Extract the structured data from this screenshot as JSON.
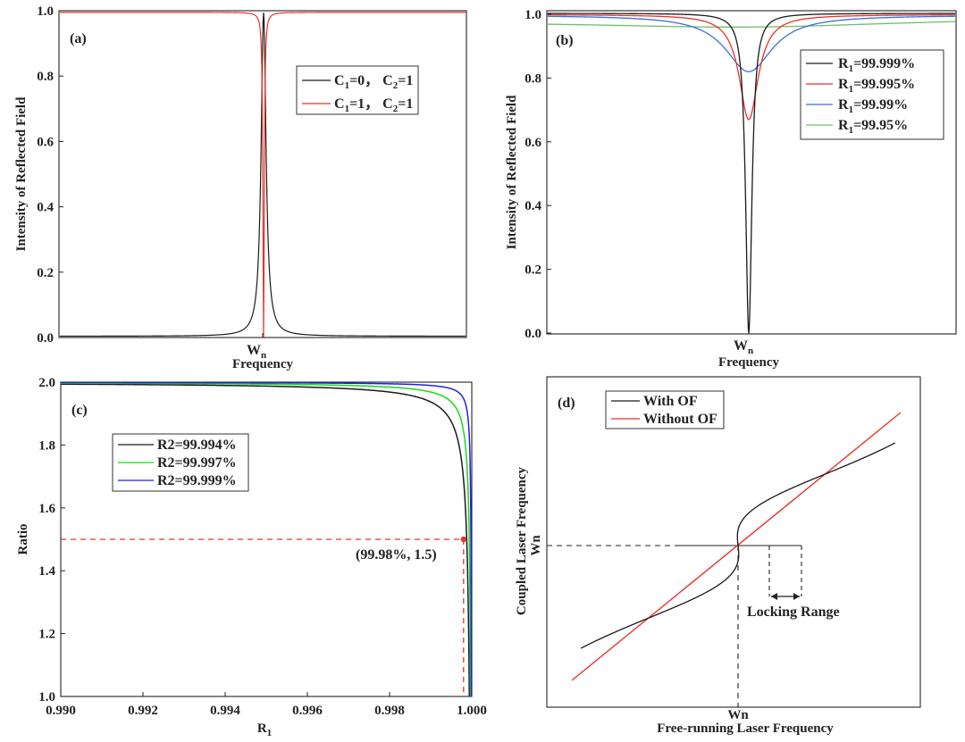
{
  "colors": {
    "black": "#1a1a1a",
    "red": "#e8322b",
    "blue": "#3b6fd9",
    "green": "#6fbf6a",
    "lime": "#19d919",
    "navy": "#2020e8",
    "dashRed": "#e8322b"
  },
  "panels": {
    "a": {
      "label": "(a)",
      "ylabel": "Intensity of Reflected Field",
      "xlabel": "Frequency",
      "x_center_label": "W",
      "x_center_sub": "n",
      "ylim": [
        0,
        1.0
      ],
      "yticks": [
        "0.0",
        "0.2",
        "0.4",
        "0.6",
        "0.8",
        "1.0"
      ],
      "legend": [
        {
          "text": "C",
          "sub1": "1",
          "mid": "=0， C",
          "sub2": "2",
          "end": "=1",
          "color": "#1a1a1a"
        },
        {
          "text": "C",
          "sub1": "1",
          "mid": "=1， C",
          "sub2": "2",
          "end": "=1",
          "color": "#e8322b"
        }
      ]
    },
    "b": {
      "label": "(b)",
      "ylabel": "Intensity of Reflected Field",
      "xlabel": "Frequency",
      "x_center_label": "W",
      "x_center_sub": "n",
      "ylim": [
        0,
        1.0
      ],
      "yticks": [
        "0.0",
        "0.2",
        "0.4",
        "0.6",
        "0.8",
        "1.0"
      ],
      "legend": [
        {
          "text": "R",
          "sub": "1",
          "rest": "=99.999%",
          "color": "#1a1a1a"
        },
        {
          "text": "R",
          "sub": "1",
          "rest": "=99.995%",
          "color": "#e8322b"
        },
        {
          "text": "R",
          "sub": "1",
          "rest": "=99.99%",
          "color": "#3b6fd9"
        },
        {
          "text": "R",
          "sub": "1",
          "rest": "=99.95%",
          "color": "#6fbf6a"
        }
      ]
    },
    "c": {
      "label": "(c)",
      "ylabel": "Ratio",
      "xlabel": "R",
      "xlabel_sub": "1",
      "xlim": [
        0.99,
        1.0
      ],
      "ylim": [
        1.0,
        2.0
      ],
      "xticks": [
        "0.990",
        "0.992",
        "0.994",
        "0.996",
        "0.998",
        "1.000"
      ],
      "yticks": [
        "1.0",
        "1.2",
        "1.4",
        "1.6",
        "1.8",
        "2.0"
      ],
      "legend": [
        {
          "text": "R2=99.994%",
          "color": "#1a1a1a"
        },
        {
          "text": "R2=99.997%",
          "color": "#19d919"
        },
        {
          "text": "R2=99.999%",
          "color": "#2020e8"
        }
      ],
      "marker": {
        "x": 0.9998,
        "y": 1.5,
        "label": "(99.98%, 1.5)"
      }
    },
    "d": {
      "label": "(d)",
      "ylabel": "Coupled Laser Frequency",
      "ylabel2": "Wn",
      "xlabel": "Free-running Laser Frequency",
      "xlabel2": "Wn",
      "legend": [
        {
          "text": "With OF",
          "color": "#1a1a1a"
        },
        {
          "text": "Without OF",
          "color": "#e8322b"
        }
      ],
      "annotation": "Locking Range"
    }
  },
  "chart_data": [
    {
      "panel": "a",
      "type": "line",
      "title": "",
      "xlabel": "Frequency",
      "ylabel": "Intensity of Reflected Field",
      "ylim": [
        0,
        1.0
      ],
      "x": "detuning (arb.) centered at Wn",
      "series": [
        {
          "name": "C1=0, C2=1",
          "shape": "Lorentzian peak",
          "baseline": 0.012,
          "peak": 1.0,
          "color": "#1a1a1a"
        },
        {
          "name": "C1=1, C2=1",
          "shape": "narrow Lorentzian dip",
          "baseline": 1.0,
          "minimum": 0.0,
          "color": "#e8322b"
        }
      ]
    },
    {
      "panel": "b",
      "type": "line",
      "title": "",
      "xlabel": "Frequency",
      "ylabel": "Intensity of Reflected Field",
      "ylim": [
        0,
        1.0
      ],
      "series": [
        {
          "name": "R1=99.999%",
          "minimum": 0.0,
          "baseline": 1.0,
          "color": "#1a1a1a"
        },
        {
          "name": "R1=99.995%",
          "minimum": 0.67,
          "baseline": 1.0,
          "color": "#e8322b"
        },
        {
          "name": "R1=99.99%",
          "minimum": 0.82,
          "baseline": 0.995,
          "color": "#3b6fd9"
        },
        {
          "name": "R1=99.95%",
          "minimum": 0.96,
          "baseline": 0.985,
          "color": "#6fbf6a"
        }
      ]
    },
    {
      "panel": "c",
      "type": "line",
      "title": "",
      "xlabel": "R1",
      "ylabel": "Ratio",
      "xlim": [
        0.99,
        1.0
      ],
      "ylim": [
        1.0,
        2.0
      ],
      "series": [
        {
          "name": "R2=99.994%",
          "x": [
            0.99,
            0.992,
            0.994,
            0.996,
            0.998,
            0.999,
            0.9995,
            0.9998,
            0.99994
          ],
          "y": [
            1.991,
            1.987,
            1.98,
            1.967,
            1.912,
            1.83,
            1.7,
            1.5,
            1.0
          ],
          "color": "#1a1a1a"
        },
        {
          "name": "R2=99.997%",
          "x": [
            0.99,
            0.992,
            0.994,
            0.996,
            0.998,
            0.999,
            0.9995,
            0.9998,
            0.99997
          ],
          "y": [
            1.996,
            1.994,
            1.99,
            1.983,
            1.957,
            1.91,
            1.83,
            1.67,
            1.0
          ],
          "color": "#19d919"
        },
        {
          "name": "R2=99.999%",
          "x": [
            0.99,
            0.992,
            0.994,
            0.996,
            0.998,
            0.999,
            0.9995,
            0.9998,
            0.99999
          ],
          "y": [
            1.999,
            1.998,
            1.997,
            1.995,
            1.99,
            1.98,
            1.96,
            1.9,
            1.0
          ],
          "color": "#2020e8"
        }
      ],
      "annotations": [
        {
          "x": 0.9998,
          "y": 1.5,
          "text": "(99.98%, 1.5)"
        }
      ]
    },
    {
      "panel": "d",
      "type": "line",
      "title": "",
      "xlabel": "Free-running Laser Frequency",
      "ylabel": "Coupled Laser Frequency",
      "series": [
        {
          "name": "With OF",
          "shape": "S-shaped (multivalued) curve through Wn",
          "color": "#1a1a1a"
        },
        {
          "name": "Without OF",
          "shape": "straight diagonal line through Wn",
          "color": "#e8322b"
        }
      ],
      "annotations": [
        {
          "text": "Locking Range"
        }
      ]
    }
  ]
}
